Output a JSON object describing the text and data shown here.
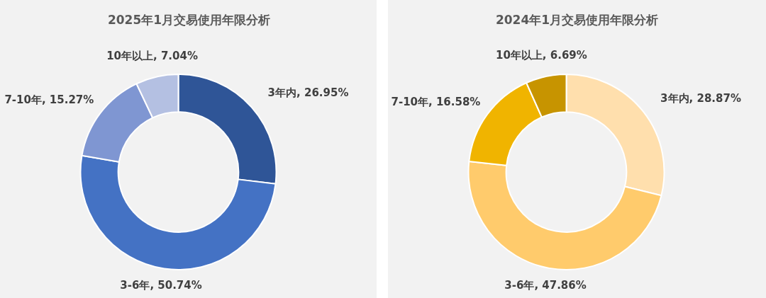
{
  "chart_data": [
    {
      "type": "donut",
      "title": "2025年1月交易使用年限分析",
      "categories": [
        "3年内",
        "3-6年",
        "7-10年",
        "10年以上"
      ],
      "values": [
        26.95,
        50.74,
        15.27,
        7.04
      ],
      "value_labels": [
        "26.95%",
        "50.74%",
        "15.27%",
        "7.04%"
      ],
      "colors": [
        "#2f5597",
        "#4472c4",
        "#7f96d2",
        "#b4c0e2"
      ]
    },
    {
      "type": "donut",
      "title": "2024年1月交易使用年限分析",
      "categories": [
        "3年内",
        "3-6年",
        "7-10年",
        "10年以上"
      ],
      "values": [
        28.87,
        47.86,
        16.58,
        6.69
      ],
      "value_labels": [
        "28.87%",
        "47.86%",
        "16.58%",
        "6.69%"
      ],
      "colors": [
        "#ffdfad",
        "#ffcb6c",
        "#f0b400",
        "#c79400"
      ]
    }
  ]
}
